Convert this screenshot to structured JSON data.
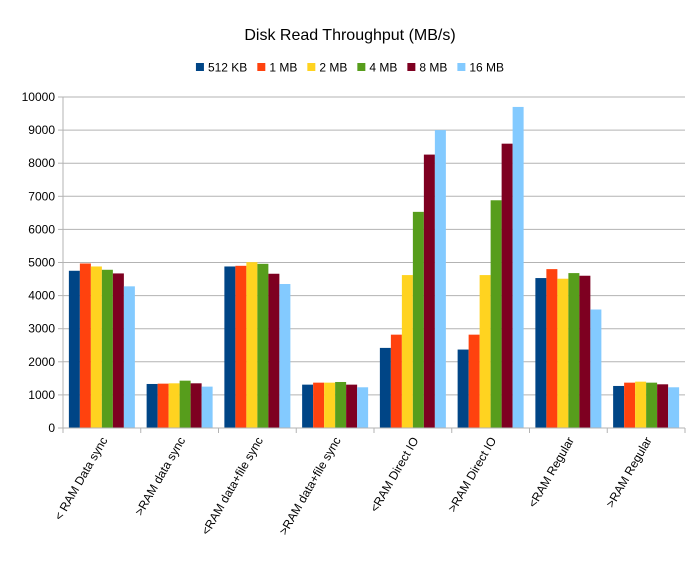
{
  "chart_data": {
    "type": "bar",
    "title": "Disk Read Throughput (MB/s)",
    "xlabel": "",
    "ylabel": "",
    "ylim": [
      0,
      10000
    ],
    "yticks": [
      0,
      1000,
      2000,
      3000,
      4000,
      5000,
      6000,
      7000,
      8000,
      9000,
      10000
    ],
    "grid": true,
    "legend_position": "top",
    "categories": [
      "< RAM Data sync",
      ">RAM data sync",
      "<RAM data+file sync",
      ">RAM data+file sync",
      "<RAM Direct IO",
      ">RAM Direct IO",
      "<RAM Regular",
      ">RAM Regular"
    ],
    "series": [
      {
        "name": "512 KB",
        "color": "#004586",
        "values": [
          4750,
          1330,
          4880,
          1310,
          2420,
          2370,
          4530,
          1270
        ]
      },
      {
        "name": "1 MB",
        "color": "#ff420e",
        "values": [
          4970,
          1340,
          4900,
          1370,
          2820,
          2820,
          4800,
          1370
        ]
      },
      {
        "name": "2 MB",
        "color": "#ffd320",
        "values": [
          4880,
          1350,
          5010,
          1370,
          4620,
          4620,
          4510,
          1400
        ]
      },
      {
        "name": "4 MB",
        "color": "#579d1c",
        "values": [
          4780,
          1430,
          4960,
          1390,
          6530,
          6880,
          4680,
          1370
        ]
      },
      {
        "name": "8 MB",
        "color": "#7e0021",
        "values": [
          4670,
          1350,
          4660,
          1310,
          8260,
          8590,
          4600,
          1320
        ]
      },
      {
        "name": "16 MB",
        "color": "#83caff",
        "values": [
          4280,
          1250,
          4350,
          1230,
          9000,
          9700,
          3580,
          1230
        ]
      }
    ]
  }
}
